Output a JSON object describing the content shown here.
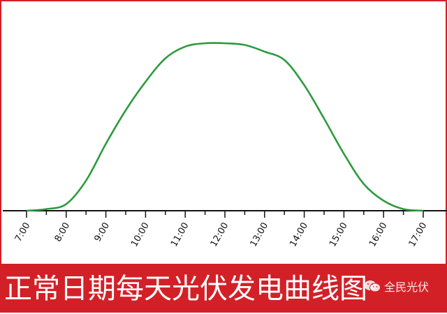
{
  "chart_data": {
    "type": "line",
    "title": "",
    "xlabel": "",
    "ylabel": "",
    "x_ticks": [
      "7:00",
      "8:00",
      "9:00",
      "10:00",
      "11:00",
      "12:00",
      "13:00",
      "14:00",
      "15:00",
      "16:00",
      "17:00"
    ],
    "x_range": [
      7,
      17
    ],
    "y_range": [
      0,
      1
    ],
    "grid": false,
    "legend": "none",
    "series": [
      {
        "color": "#2e9a3e",
        "x": [
          7.0,
          7.5,
          8.0,
          8.5,
          9.0,
          9.5,
          10.0,
          10.5,
          11.0,
          11.5,
          12.0,
          12.5,
          13.0,
          13.5,
          14.0,
          14.5,
          15.0,
          15.5,
          16.0,
          16.5,
          17.0
        ],
        "y": [
          0.0,
          0.01,
          0.04,
          0.18,
          0.4,
          0.6,
          0.77,
          0.91,
          0.98,
          1.0,
          1.0,
          0.99,
          0.95,
          0.9,
          0.75,
          0.55,
          0.34,
          0.16,
          0.06,
          0.01,
          0.0
        ]
      }
    ]
  },
  "caption": {
    "text": "正常日期每天光伏发电曲线图",
    "background": "#d32027"
  },
  "watermark": {
    "text": "全民光伏",
    "icon": "wechat-icon"
  }
}
